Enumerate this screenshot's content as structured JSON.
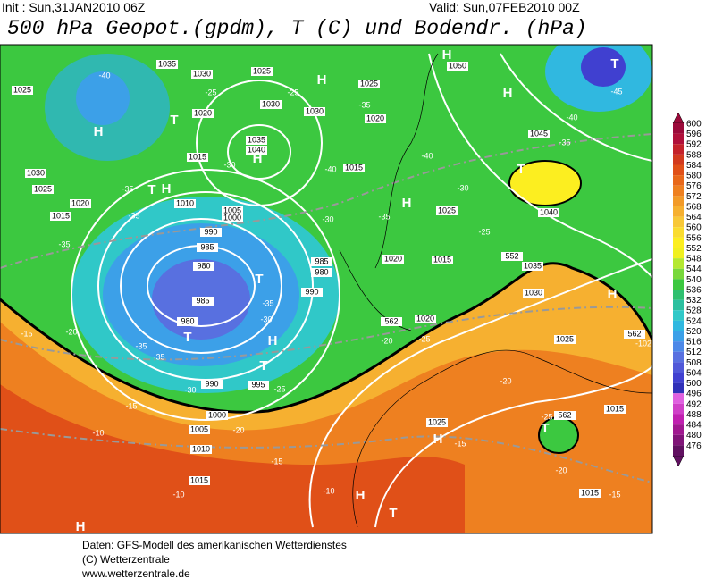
{
  "header": {
    "init": "Init : Sun,31JAN2010 06Z",
    "valid": "Valid: Sun,07FEB2010 00Z",
    "title": "500 hPa Geopot.(gpdm), T (C) und Bodendr. (hPa)"
  },
  "colorbar": {
    "values": [
      600,
      596,
      592,
      588,
      584,
      580,
      576,
      572,
      568,
      564,
      560,
      556,
      552,
      548,
      544,
      540,
      536,
      532,
      528,
      524,
      520,
      516,
      512,
      508,
      504,
      500,
      496,
      492,
      488,
      484,
      480,
      476
    ],
    "colors": [
      "#9b0a3a",
      "#b0103a",
      "#c4222a",
      "#d23a1e",
      "#e05018",
      "#e8681a",
      "#ee8020",
      "#f29a28",
      "#f6b030",
      "#f8c838",
      "#fadc30",
      "#fcee20",
      "#f0f020",
      "#b4e830",
      "#78d83c",
      "#3cc840",
      "#30c070",
      "#2cc0a0",
      "#30c8c8",
      "#30b8e0",
      "#3ca0e8",
      "#4c88e8",
      "#5870e0",
      "#5058d8",
      "#4040d0",
      "#3030b8",
      "#e060e0",
      "#d040c8",
      "#c020b0",
      "#a01890",
      "#801478",
      "#601060"
    ]
  },
  "map_labels": [
    "H",
    "T",
    "H",
    "H",
    "H",
    "H",
    "T",
    "T",
    "H",
    "T",
    "H",
    "T",
    "T",
    "H",
    "T",
    "H",
    "T",
    "H",
    "H",
    "T",
    "H",
    "1025",
    "1035",
    "1030",
    "1025",
    "1030",
    "1020",
    "1035",
    "1040",
    "1015",
    "1030",
    "1025",
    "1020",
    "1015",
    "1050",
    "1045",
    "1040",
    "1030",
    "1025",
    "1020",
    "1015",
    "1010",
    "1005",
    "1000",
    "990",
    "985",
    "980",
    "985",
    "980",
    "985",
    "980",
    "990",
    "1025",
    "1020",
    "1015",
    "1035",
    "1030",
    "1020",
    "1025",
    "990",
    "995",
    "1000",
    "1005",
    "1010",
    "1015",
    "1025",
    "1015",
    "1015",
    "-40",
    "-25",
    "-25",
    "-35",
    "-40",
    "-45",
    "-35",
    "-30",
    "-40",
    "-40",
    "-35",
    "-35",
    "-30",
    "-35",
    "-30",
    "-25",
    "-35",
    "-35",
    "-30",
    "-35",
    "-35",
    "-30",
    "-25",
    "-20",
    "-15",
    "-20",
    "-25",
    "-20",
    "-25",
    "-15",
    "-20",
    "-15",
    "-20",
    "-10",
    "-15",
    "-10",
    "-10",
    "-15",
    "-102",
    "552",
    "562",
    "562",
    "562"
  ],
  "footer": [
    "Daten: GFS-Modell des amerikanischen Wetterdienstes",
    "(C) Wetterzentrale",
    "www.wetterzentrale.de"
  ]
}
